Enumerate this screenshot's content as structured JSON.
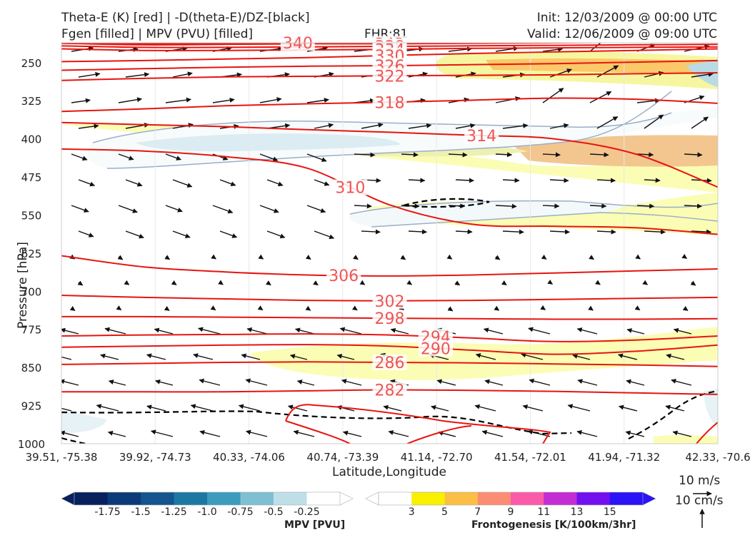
{
  "header": {
    "line1_left": "Theta-E (K) [red] | -D(theta-E)/DZ-[black]",
    "line2_left": "Fgen [filled] | MPV (PVU) [filled]",
    "fhr": "FHR:81",
    "init": "Init: 12/03/2009 @ 00:00 UTC",
    "valid": "Valid: 12/06/2009 @ 09:00 UTC"
  },
  "chart_data": {
    "type": "contour",
    "ylabel": "Pressure [hPa]",
    "xlabel": "Latitude,Longitude",
    "y_ticks": [
      250,
      325,
      400,
      475,
      550,
      625,
      700,
      775,
      850,
      925,
      1000
    ],
    "ylim": [
      1000,
      200
    ],
    "y_scale": "linear-inverted",
    "x_ticks": [
      "39.51, -75.38",
      "39.92, -74.73",
      "40.33, -74.06",
      "40.74, -73.39",
      "41.14, -72.70",
      "41.54, -72.01",
      "41.94, -71.32",
      "42.33, -70.6"
    ],
    "theta_e_contours": [
      {
        "label": "340",
        "pressure": [
          209,
          213,
          212,
          211,
          211,
          210,
          209,
          208,
          207
        ],
        "label_x": 0.36
      },
      {
        "label": "342",
        "pressure": [
          212,
          215,
          214,
          213,
          213,
          212,
          211,
          210,
          209
        ],
        "label_x": 0.5
      },
      {
        "label": "338",
        "pressure": [
          217,
          220,
          220,
          219,
          218,
          217,
          216,
          215,
          214
        ],
        "label_x": 0.5
      },
      {
        "label": "334",
        "pressure": [
          223,
          226,
          226,
          225,
          224,
          222,
          221,
          220,
          219
        ],
        "label_x": 0.5
      },
      {
        "label": "330",
        "pressure": [
          248,
          246,
          243,
          240,
          236,
          232,
          229,
          226,
          223
        ],
        "label_x": 0.5
      },
      {
        "label": "326",
        "pressure": [
          265,
          262,
          259,
          257,
          256,
          254,
          252,
          249,
          246
        ],
        "label_x": 0.5
      },
      {
        "label": "322",
        "pressure": [
          285,
          281,
          278,
          277,
          276,
          275,
          274,
          272,
          270
        ],
        "label_x": 0.5
      },
      {
        "label": "318",
        "pressure": [
          346,
          341,
          335,
          331,
          328,
          324,
          320,
          322,
          330
        ],
        "label_x": 0.5
      },
      {
        "label": "314",
        "pressure": [
          368,
          372,
          376,
          382,
          387,
          393,
          400,
          430,
          495
        ],
        "label_x": 0.64
      },
      {
        "label": "310",
        "pressure": [
          420,
          424,
          435,
          458,
          530,
          568,
          572,
          575,
          588
        ],
        "label_x": 0.44
      },
      {
        "label": "306",
        "pressure": [
          630,
          652,
          662,
          668,
          670,
          668,
          664,
          660,
          656
        ],
        "label_x": 0.43
      },
      {
        "label": "302",
        "pressure": [
          708,
          712,
          715,
          718,
          719,
          718,
          716,
          714,
          712
        ],
        "label_x": 0.5
      },
      {
        "label": "298",
        "pressure": [
          750,
          750,
          751,
          752,
          753,
          754,
          755,
          755,
          754
        ],
        "label_x": 0.5
      },
      {
        "label": "294",
        "pressure": [
          788,
          786,
          785,
          784,
          786,
          792,
          799,
          796,
          788
        ],
        "label_x": 0.57
      },
      {
        "label": "290",
        "pressure": [
          810,
          808,
          806,
          805,
          808,
          816,
          824,
          818,
          806
        ],
        "label_x": 0.57
      },
      {
        "label": "286",
        "pressure": [
          844,
          842,
          840,
          839,
          840,
          841,
          843,
          845,
          848
        ],
        "label_x": 0.5
      },
      {
        "label": "282",
        "pressure": [
          898,
          898,
          898,
          896,
          894,
          895,
          897,
          900,
          903
        ],
        "label_x": 0.5
      }
    ],
    "mpv_colorbar": {
      "label": "MPV [PVU]",
      "ticks": [
        "-1.75",
        "-1.5",
        "-1.25",
        "-1.0",
        "-0.75",
        "-0.5",
        "-0.25"
      ],
      "colors": [
        "#08205e",
        "#0b3a78",
        "#14548f",
        "#1c78a3",
        "#3b9cbd",
        "#7fbfd4",
        "#bfdfe8",
        "#ffffff"
      ]
    },
    "fgen_colorbar": {
      "label": "Frontogenesis [K/100km/3hr]",
      "ticks": [
        "3",
        "5",
        "7",
        "9",
        "11",
        "13",
        "15"
      ],
      "colors": [
        "#ffffff",
        "#f9f000",
        "#fcbf45",
        "#fb8d73",
        "#fa5aa8",
        "#c22ed4",
        "#7310f0",
        "#2a13f5"
      ]
    },
    "wind_scale": {
      "horizontal": "10 m/s",
      "vertical": "10 cm/s"
    }
  }
}
